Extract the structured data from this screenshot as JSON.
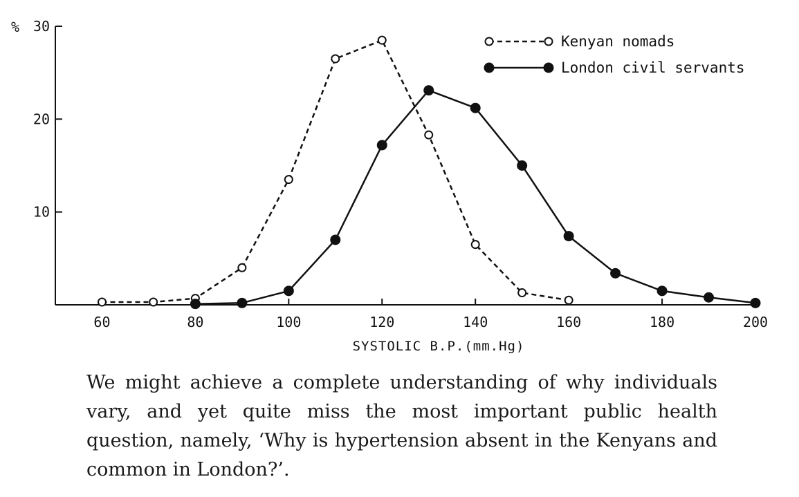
{
  "chart_data": {
    "type": "line",
    "xlabel": "SYSTOLIC B.P.(mm.Hg)",
    "ylabel": "%",
    "xlim": [
      50,
      200
    ],
    "ylim": [
      0,
      30
    ],
    "x_ticks": [
      60,
      80,
      100,
      120,
      140,
      160,
      180,
      200
    ],
    "y_ticks": [
      10,
      20,
      30
    ],
    "grid": false,
    "legend_position": "top-right",
    "series": [
      {
        "name": "Kenyan nomads",
        "style": "dashed",
        "marker": "open-circle",
        "x": [
          60,
          71,
          80,
          90,
          100,
          110,
          120,
          130,
          140,
          150,
          160
        ],
        "y": [
          0.3,
          0.3,
          0.7,
          4.0,
          13.5,
          26.5,
          28.5,
          18.3,
          6.5,
          1.3,
          0.5
        ]
      },
      {
        "name": "London civil servants",
        "style": "solid",
        "marker": "filled-circle",
        "x": [
          80,
          90,
          100,
          110,
          120,
          130,
          140,
          150,
          160,
          170,
          180,
          190,
          200
        ],
        "y": [
          0.1,
          0.2,
          1.5,
          7.0,
          17.2,
          23.1,
          21.2,
          15.0,
          7.4,
          3.4,
          1.5,
          0.8,
          0.2
        ]
      }
    ]
  },
  "caption": "We might achieve a complete understanding of why individuals vary, and yet quite miss the most important public health question, namely, ‘Why is hypertension absent in the Kenyans and common in London?’."
}
